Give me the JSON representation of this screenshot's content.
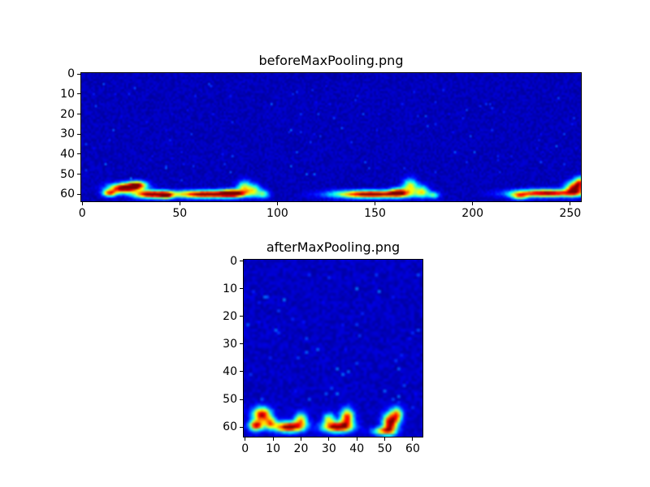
{
  "figure": {
    "background": "#ffffff",
    "frame_color": "#000000",
    "heatmap_low_color": "#000080",
    "heatmap_high_color": "#ff0000"
  },
  "chart_data": [
    {
      "type": "heatmap",
      "title": "beforeMaxPooling.png",
      "colormap": "jet",
      "grid": {
        "cols": 256,
        "rows": 64
      },
      "xlim": [
        0,
        255
      ],
      "ylim": [
        63,
        0
      ],
      "xticks": [
        0,
        50,
        100,
        150,
        200,
        250
      ],
      "yticks": [
        0,
        10,
        20,
        30,
        40,
        50,
        60
      ],
      "xlabel": "",
      "ylabel": "",
      "legend": "none",
      "grid_lines": false,
      "noise": {
        "base": 0.03,
        "amp": 0.055,
        "speckle_prob": 0.012,
        "speckle_max": 0.16
      },
      "hotspot_model": "gaussian",
      "hotspots": [
        {
          "x": 21,
          "y": 57,
          "rx": 5,
          "ry": 1.6,
          "v": 1.0
        },
        {
          "x": 28,
          "y": 55.5,
          "rx": 3.5,
          "ry": 1.4,
          "v": 0.85
        },
        {
          "x": 14,
          "y": 59.5,
          "rx": 2.5,
          "ry": 1.2,
          "v": 0.7
        },
        {
          "x": 35,
          "y": 60,
          "rx": 6,
          "ry": 1.4,
          "v": 0.95
        },
        {
          "x": 43,
          "y": 60.5,
          "rx": 2.5,
          "ry": 1.2,
          "v": 0.6
        },
        {
          "x": 64,
          "y": 60,
          "rx": 12,
          "ry": 1.3,
          "v": 1.0
        },
        {
          "x": 77,
          "y": 59.5,
          "rx": 4,
          "ry": 1.3,
          "v": 0.8
        },
        {
          "x": 83,
          "y": 56.5,
          "rx": 2.5,
          "ry": 2.2,
          "v": 0.5
        },
        {
          "x": 88,
          "y": 58,
          "rx": 2.5,
          "ry": 2.0,
          "v": 0.45
        },
        {
          "x": 93,
          "y": 60,
          "rx": 2,
          "ry": 1.5,
          "v": 0.35
        },
        {
          "x": 148,
          "y": 60,
          "rx": 13,
          "ry": 1.3,
          "v": 1.0
        },
        {
          "x": 162,
          "y": 59,
          "rx": 3,
          "ry": 1.5,
          "v": 0.7
        },
        {
          "x": 168,
          "y": 56,
          "rx": 2.5,
          "ry": 2.5,
          "v": 0.55
        },
        {
          "x": 174,
          "y": 58.5,
          "rx": 2.5,
          "ry": 2.0,
          "v": 0.5
        },
        {
          "x": 180,
          "y": 60.5,
          "rx": 2,
          "ry": 1.2,
          "v": 0.35
        },
        {
          "x": 238,
          "y": 59.5,
          "rx": 12,
          "ry": 1.3,
          "v": 0.95
        },
        {
          "x": 252,
          "y": 57,
          "rx": 3,
          "ry": 2.2,
          "v": 0.85
        },
        {
          "x": 255,
          "y": 54,
          "rx": 2,
          "ry": 2.0,
          "v": 0.6
        },
        {
          "x": 224,
          "y": 61,
          "rx": 3,
          "ry": 1.2,
          "v": 0.5
        }
      ]
    },
    {
      "type": "heatmap",
      "title": "afterMaxPooling.png",
      "colormap": "jet",
      "grid": {
        "cols": 64,
        "rows": 64
      },
      "xlim": [
        0,
        63
      ],
      "ylim": [
        63,
        0
      ],
      "xticks": [
        0,
        10,
        20,
        30,
        40,
        50,
        60
      ],
      "yticks": [
        0,
        10,
        20,
        30,
        40,
        50,
        60
      ],
      "xlabel": "",
      "ylabel": "",
      "legend": "none",
      "grid_lines": false,
      "noise": {
        "base": 0.035,
        "amp": 0.06,
        "speckle_prob": 0.02,
        "speckle_max": 0.18
      },
      "hotspot_model": "gaussian",
      "hotspots": [
        {
          "x": 6,
          "y": 55.5,
          "rx": 2.2,
          "ry": 1.8,
          "v": 0.9
        },
        {
          "x": 4,
          "y": 59.5,
          "rx": 1.8,
          "ry": 1.3,
          "v": 0.85
        },
        {
          "x": 9,
          "y": 58.5,
          "rx": 1.4,
          "ry": 1.4,
          "v": 0.6
        },
        {
          "x": 15.5,
          "y": 60,
          "rx": 3.5,
          "ry": 1.3,
          "v": 1.0
        },
        {
          "x": 20,
          "y": 57.5,
          "rx": 1.6,
          "ry": 1.8,
          "v": 0.6
        },
        {
          "x": 33,
          "y": 60,
          "rx": 3.5,
          "ry": 1.3,
          "v": 1.0
        },
        {
          "x": 36.5,
          "y": 56.5,
          "rx": 1.6,
          "ry": 2.2,
          "v": 0.8
        },
        {
          "x": 30,
          "y": 57,
          "rx": 1.4,
          "ry": 1.4,
          "v": 0.5
        },
        {
          "x": 52,
          "y": 58.5,
          "rx": 1.8,
          "ry": 2.4,
          "v": 0.95
        },
        {
          "x": 54.5,
          "y": 55.5,
          "rx": 1.4,
          "ry": 1.8,
          "v": 0.6
        },
        {
          "x": 49.5,
          "y": 61.5,
          "rx": 2.6,
          "ry": 1.0,
          "v": 0.6
        }
      ]
    }
  ]
}
